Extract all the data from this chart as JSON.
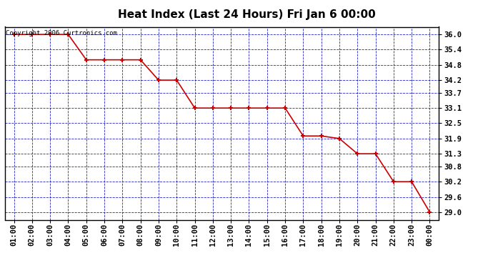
{
  "title": "Heat Index (Last 24 Hours) Fri Jan 6 00:00",
  "copyright": "Copyright 2006 Curtronics.com",
  "x_labels": [
    "01:00",
    "02:00",
    "03:00",
    "04:00",
    "05:00",
    "06:00",
    "07:00",
    "08:00",
    "09:00",
    "10:00",
    "11:00",
    "12:00",
    "13:00",
    "14:00",
    "15:00",
    "16:00",
    "17:00",
    "18:00",
    "19:00",
    "20:00",
    "21:00",
    "22:00",
    "23:00",
    "00:00"
  ],
  "x_values": [
    1,
    2,
    3,
    4,
    5,
    6,
    7,
    8,
    9,
    10,
    11,
    12,
    13,
    14,
    15,
    16,
    17,
    18,
    19,
    20,
    21,
    22,
    23,
    24
  ],
  "y_values": [
    36.0,
    36.0,
    36.0,
    36.0,
    35.0,
    35.0,
    35.0,
    35.0,
    34.2,
    34.2,
    33.1,
    33.1,
    33.1,
    33.1,
    33.1,
    33.1,
    32.0,
    32.0,
    31.9,
    31.3,
    31.3,
    30.2,
    30.2,
    29.0
  ],
  "y_ticks": [
    29.0,
    29.6,
    30.2,
    30.8,
    31.3,
    31.9,
    32.5,
    33.1,
    33.7,
    34.2,
    34.8,
    35.4,
    36.0
  ],
  "ylim": [
    28.7,
    36.3
  ],
  "line_color": "#cc0000",
  "marker_color": "#cc0000",
  "bg_color": "#ffffff",
  "plot_bg_color": "#ffffff",
  "grid_color": "#0000bb",
  "title_color": "#000000",
  "border_color": "#000000",
  "title_fontsize": 11,
  "tick_fontsize": 7.5,
  "copyright_fontsize": 6.5
}
